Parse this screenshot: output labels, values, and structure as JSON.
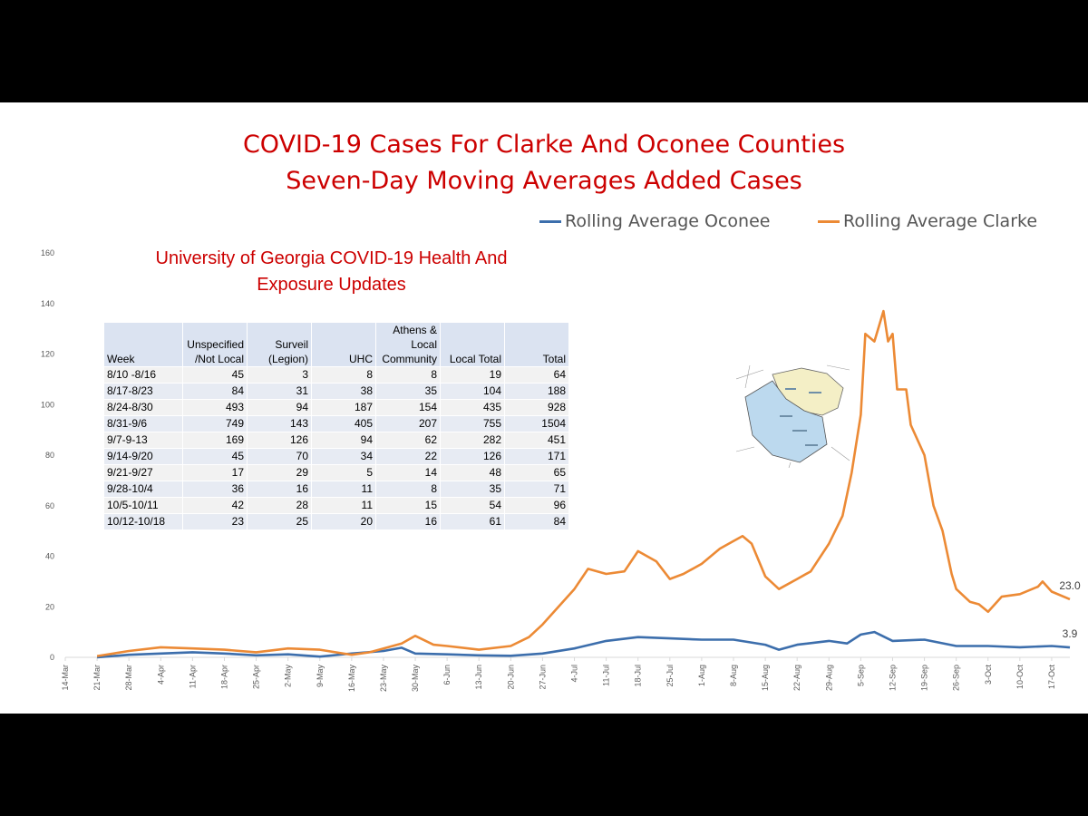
{
  "header": {
    "title_line1": "COVID-19 Cases For Clarke And Oconee Counties",
    "title_line2": "Seven-Day Moving Averages Added Cases"
  },
  "legend": {
    "oconee": "Rolling Average Oconee",
    "clarke": "Rolling Average Clarke"
  },
  "colors": {
    "title": "#cc0000",
    "oconee": "#3c6eac",
    "clarke": "#ec8a35",
    "axis": "#d9d9d9",
    "map_blue": "#bcd9ee",
    "map_yellow": "#f4efc6"
  },
  "map": {
    "description_icon": "county-map-image"
  },
  "table": {
    "title_line1": "University of Georgia COVID-19 Health And",
    "title_line2": "Exposure Updates",
    "headers": [
      [
        "Week"
      ],
      [
        "Unspecified",
        "/Not Local"
      ],
      [
        "Surveil",
        "(Legion)"
      ],
      [
        "UHC"
      ],
      [
        "Athens &",
        "Local",
        "Community"
      ],
      [
        "Local Total"
      ],
      [
        "Total"
      ]
    ],
    "rows": [
      [
        "8/10 -8/16",
        "45",
        "3",
        "8",
        "8",
        "19",
        "64"
      ],
      [
        "8/17-8/23",
        "84",
        "31",
        "38",
        "35",
        "104",
        "188"
      ],
      [
        "8/24-8/30",
        "493",
        "94",
        "187",
        "154",
        "435",
        "928"
      ],
      [
        "8/31-9/6",
        "749",
        "143",
        "405",
        "207",
        "755",
        "1504"
      ],
      [
        "9/7-9-13",
        "169",
        "126",
        "94",
        "62",
        "282",
        "451"
      ],
      [
        "9/14-9/20",
        "45",
        "70",
        "34",
        "22",
        "126",
        "171"
      ],
      [
        "9/21-9/27",
        "17",
        "29",
        "5",
        "14",
        "48",
        "65"
      ],
      [
        "9/28-10/4",
        "36",
        "16",
        "11",
        "8",
        "35",
        "71"
      ],
      [
        "10/5-10/11",
        "42",
        "28",
        "11",
        "15",
        "54",
        "96"
      ],
      [
        "10/12-10/18",
        "23",
        "25",
        "20",
        "16",
        "61",
        "84"
      ]
    ]
  },
  "chart_data": {
    "type": "line",
    "title": "COVID-19 Cases For Clarke And Oconee Counties",
    "subtitle": "Seven-Day Moving Averages Added Cases",
    "xlabel": "",
    "ylabel": "",
    "ylim": [
      0,
      160
    ],
    "yticks": [
      0,
      20,
      40,
      60,
      80,
      100,
      120,
      140,
      160
    ],
    "x_start": "14-Mar",
    "x_end": "21-Oct",
    "x_ticks": [
      "14-Mar",
      "21-Mar",
      "28-Mar",
      "4-Apr",
      "11-Apr",
      "18-Apr",
      "25-Apr",
      "2-May",
      "9-May",
      "16-May",
      "23-May",
      "30-May",
      "6-Jun",
      "13-Jun",
      "20-Jun",
      "27-Jun",
      "4-Jul",
      "11-Jul",
      "18-Jul",
      "25-Jul",
      "1-Aug",
      "8-Aug",
      "15-Aug",
      "22-Aug",
      "29-Aug",
      "5-Sep",
      "12-Sep",
      "19-Sep",
      "26-Sep",
      "3-Oct",
      "10-Oct",
      "17-Oct"
    ],
    "grid": false,
    "legend_position": "top-right",
    "series": [
      {
        "name": "Rolling Average Oconee",
        "end_label": "3.9",
        "points": [
          [
            "21-Mar",
            0
          ],
          [
            "28-Mar",
            1
          ],
          [
            "4-Apr",
            1.5
          ],
          [
            "11-Apr",
            2
          ],
          [
            "18-Apr",
            1.5
          ],
          [
            "25-Apr",
            0.8
          ],
          [
            "2-May",
            1.2
          ],
          [
            "9-May",
            0.3
          ],
          [
            "16-May",
            1.5
          ],
          [
            "23-May",
            2.5
          ],
          [
            "27-May",
            3.8
          ],
          [
            "30-May",
            1.5
          ],
          [
            "6-Jun",
            1.2
          ],
          [
            "13-Jun",
            0.8
          ],
          [
            "20-Jun",
            0.6
          ],
          [
            "27-Jun",
            1.5
          ],
          [
            "4-Jul",
            3.5
          ],
          [
            "11-Jul",
            6.5
          ],
          [
            "18-Jul",
            8
          ],
          [
            "25-Jul",
            7.5
          ],
          [
            "1-Aug",
            7
          ],
          [
            "8-Aug",
            7
          ],
          [
            "15-Aug",
            5
          ],
          [
            "18-Aug",
            3
          ],
          [
            "22-Aug",
            5
          ],
          [
            "29-Aug",
            6.5
          ],
          [
            "2-Sep",
            5.5
          ],
          [
            "5-Sep",
            9
          ],
          [
            "8-Sep",
            10
          ],
          [
            "12-Sep",
            6.5
          ],
          [
            "19-Sep",
            7
          ],
          [
            "26-Sep",
            4.5
          ],
          [
            "3-Oct",
            4.5
          ],
          [
            "10-Oct",
            4
          ],
          [
            "17-Oct",
            4.5
          ],
          [
            "21-Oct",
            3.9
          ]
        ]
      },
      {
        "name": "Rolling Average Clarke",
        "end_label": "23.0",
        "points": [
          [
            "21-Mar",
            0.5
          ],
          [
            "28-Mar",
            2.5
          ],
          [
            "4-Apr",
            4
          ],
          [
            "11-Apr",
            3.5
          ],
          [
            "18-Apr",
            3
          ],
          [
            "25-Apr",
            2
          ],
          [
            "2-May",
            3.5
          ],
          [
            "9-May",
            3
          ],
          [
            "16-May",
            1
          ],
          [
            "20-May",
            2
          ],
          [
            "23-May",
            3.5
          ],
          [
            "27-May",
            5.5
          ],
          [
            "30-May",
            8.5
          ],
          [
            "3-Jun",
            5
          ],
          [
            "6-Jun",
            4.5
          ],
          [
            "13-Jun",
            3
          ],
          [
            "20-Jun",
            4.5
          ],
          [
            "24-Jun",
            8
          ],
          [
            "27-Jun",
            13
          ],
          [
            "4-Jul",
            27
          ],
          [
            "7-Jul",
            35
          ],
          [
            "11-Jul",
            33
          ],
          [
            "15-Jul",
            34
          ],
          [
            "18-Jul",
            42
          ],
          [
            "22-Jul",
            38
          ],
          [
            "25-Jul",
            31
          ],
          [
            "28-Jul",
            33
          ],
          [
            "1-Aug",
            37
          ],
          [
            "5-Aug",
            43
          ],
          [
            "8-Aug",
            46
          ],
          [
            "10-Aug",
            48
          ],
          [
            "12-Aug",
            45
          ],
          [
            "15-Aug",
            32
          ],
          [
            "18-Aug",
            27
          ],
          [
            "22-Aug",
            31
          ],
          [
            "25-Aug",
            34
          ],
          [
            "29-Aug",
            45
          ],
          [
            "1-Sep",
            56
          ],
          [
            "3-Sep",
            73
          ],
          [
            "5-Sep",
            96
          ],
          [
            "6-Sep",
            128
          ],
          [
            "8-Sep",
            125
          ],
          [
            "10-Sep",
            137
          ],
          [
            "11-Sep",
            125
          ],
          [
            "12-Sep",
            128
          ],
          [
            "13-Sep",
            106
          ],
          [
            "15-Sep",
            106
          ],
          [
            "16-Sep",
            92
          ],
          [
            "19-Sep",
            80
          ],
          [
            "21-Sep",
            60
          ],
          [
            "23-Sep",
            50
          ],
          [
            "25-Sep",
            33
          ],
          [
            "26-Sep",
            27
          ],
          [
            "29-Sep",
            22
          ],
          [
            "1-Oct",
            21
          ],
          [
            "3-Oct",
            18
          ],
          [
            "6-Oct",
            24
          ],
          [
            "10-Oct",
            25
          ],
          [
            "14-Oct",
            28
          ],
          [
            "15-Oct",
            30
          ],
          [
            "17-Oct",
            26
          ],
          [
            "21-Oct",
            23
          ]
        ]
      }
    ]
  }
}
